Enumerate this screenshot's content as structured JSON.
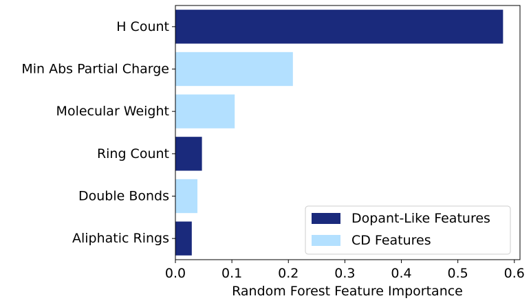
{
  "chart_data": {
    "type": "bar",
    "orientation": "horizontal",
    "categories": [
      "H Count",
      "Min Abs Partial Charge",
      "Molecular Weight",
      "Ring Count",
      "Double Bonds",
      "Aliphatic Rings"
    ],
    "values": [
      0.58,
      0.208,
      0.105,
      0.047,
      0.039,
      0.029
    ],
    "groups": [
      "Dopant-Like Features",
      "CD Features",
      "CD Features",
      "Dopant-Like Features",
      "CD Features",
      "Dopant-Like Features"
    ],
    "xlabel": "Random Forest Feature Importance",
    "ylabel": "",
    "xlim": [
      0,
      0.61
    ],
    "xticks": [
      "0.0",
      "0.1",
      "0.2",
      "0.3",
      "0.4",
      "0.5",
      "0.6"
    ],
    "grid": false,
    "legend": {
      "position": "bottom-right",
      "entries": [
        {
          "label": "Dopant-Like Features",
          "color": "#1a2a7c"
        },
        {
          "label": "CD Features",
          "color": "#b3e0ff"
        }
      ]
    }
  }
}
